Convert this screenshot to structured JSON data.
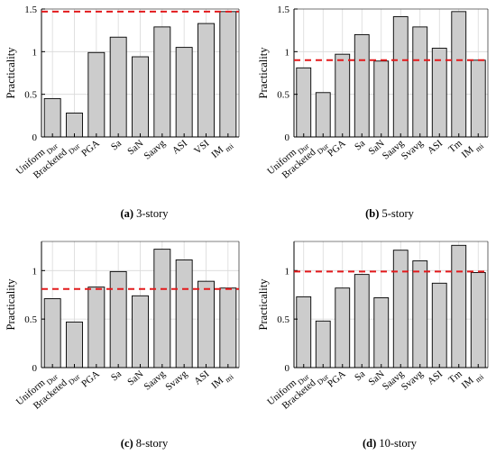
{
  "colors": {
    "bar_fill": "#cccccc",
    "bar_stroke": "#000000",
    "grid": "#d9d9d9",
    "reference_line": "#e31a1c",
    "axis": "#000000"
  },
  "chart_data": [
    {
      "panel": "a",
      "type": "bar",
      "caption_letter": "(a)",
      "caption_text": " 3-story",
      "ylabel": "Practicality",
      "ylim": [
        0,
        1.5
      ],
      "yticks": [
        0,
        0.5,
        1,
        1.5
      ],
      "ytick_labels": [
        "0",
        "0.5",
        "1",
        "1.5"
      ],
      "grid": true,
      "categories": [
        {
          "base": "Uniform",
          "sub": "Dur"
        },
        {
          "base": "Bracketed",
          "sub": "Dur"
        },
        {
          "base": "PGA",
          "sub": ""
        },
        {
          "base": "Sa",
          "sub": ""
        },
        {
          "base": "SaN",
          "sub": ""
        },
        {
          "base": "Saavg",
          "sub": ""
        },
        {
          "base": "ASI",
          "sub": ""
        },
        {
          "base": "VSI",
          "sub": ""
        },
        {
          "base": "IM",
          "sub": "mi"
        }
      ],
      "values": [
        0.45,
        0.28,
        0.99,
        1.17,
        0.94,
        1.29,
        1.05,
        1.33,
        1.47
      ],
      "reference_line": {
        "y": 1.47,
        "style": "dashed"
      }
    },
    {
      "panel": "b",
      "type": "bar",
      "caption_letter": "(b)",
      "caption_text": " 5-story",
      "ylabel": "Practicality",
      "ylim": [
        0,
        1.5
      ],
      "yticks": [
        0,
        0.5,
        1,
        1.5
      ],
      "ytick_labels": [
        "0",
        "0.5",
        "1",
        "1.5"
      ],
      "grid": true,
      "categories": [
        {
          "base": "Uniform",
          "sub": "Dur"
        },
        {
          "base": "Bracketed",
          "sub": "Dur"
        },
        {
          "base": "PGA",
          "sub": ""
        },
        {
          "base": "Sa",
          "sub": ""
        },
        {
          "base": "SaN",
          "sub": ""
        },
        {
          "base": "Saavg",
          "sub": ""
        },
        {
          "base": "Svavg",
          "sub": ""
        },
        {
          "base": "ASI",
          "sub": ""
        },
        {
          "base": "Tm",
          "sub": ""
        },
        {
          "base": "IM",
          "sub": "mi"
        }
      ],
      "values": [
        0.81,
        0.52,
        0.97,
        1.2,
        0.89,
        1.41,
        1.29,
        1.04,
        1.47,
        0.9
      ],
      "reference_line": {
        "y": 0.9,
        "style": "dashed"
      }
    },
    {
      "panel": "c",
      "type": "bar",
      "caption_letter": "(c)",
      "caption_text": " 8-story",
      "ylabel": "Practicality",
      "ylim": [
        0,
        1.3
      ],
      "yticks": [
        0,
        0.5,
        1
      ],
      "ytick_labels": [
        "0",
        "0.5",
        "1"
      ],
      "grid": true,
      "categories": [
        {
          "base": "Uniform",
          "sub": "Dur"
        },
        {
          "base": "Bracketed",
          "sub": "Dur"
        },
        {
          "base": "PGA",
          "sub": ""
        },
        {
          "base": "Sa",
          "sub": ""
        },
        {
          "base": "SaN",
          "sub": ""
        },
        {
          "base": "Saavg",
          "sub": ""
        },
        {
          "base": "Svavg",
          "sub": ""
        },
        {
          "base": "ASI",
          "sub": ""
        },
        {
          "base": "IM",
          "sub": "mi"
        }
      ],
      "values": [
        0.71,
        0.47,
        0.83,
        0.99,
        0.74,
        1.22,
        1.11,
        0.89,
        0.82
      ],
      "reference_line": {
        "y": 0.81,
        "style": "dashed"
      }
    },
    {
      "panel": "d",
      "type": "bar",
      "caption_letter": "(d)",
      "caption_text": " 10-story",
      "ylabel": "Practicality",
      "ylim": [
        0,
        1.3
      ],
      "yticks": [
        0,
        0.5,
        1
      ],
      "ytick_labels": [
        "0",
        "0.5",
        "1"
      ],
      "grid": true,
      "categories": [
        {
          "base": "Uniform",
          "sub": "Dur"
        },
        {
          "base": "Bracketed",
          "sub": "Dur"
        },
        {
          "base": "PGA",
          "sub": ""
        },
        {
          "base": "Sa",
          "sub": ""
        },
        {
          "base": "SaN",
          "sub": ""
        },
        {
          "base": "Saavg",
          "sub": ""
        },
        {
          "base": "Svavg",
          "sub": ""
        },
        {
          "base": "ASI",
          "sub": ""
        },
        {
          "base": "Tm",
          "sub": ""
        },
        {
          "base": "IM",
          "sub": "mi"
        }
      ],
      "values": [
        0.73,
        0.48,
        0.82,
        0.96,
        0.72,
        1.21,
        1.1,
        0.87,
        1.26,
        0.98
      ],
      "reference_line": {
        "y": 0.99,
        "style": "dashed"
      }
    }
  ]
}
